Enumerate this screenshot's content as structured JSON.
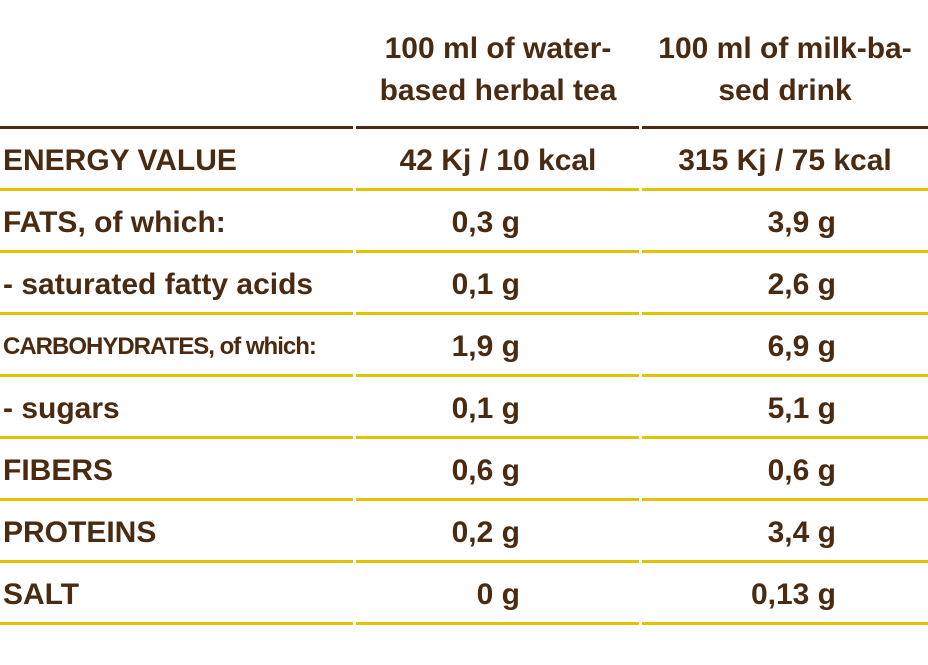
{
  "header": {
    "col1": "",
    "col2": [
      "100 ml of water-",
      "based herbal tea"
    ],
    "col3": [
      "100 ml of milk-ba-",
      "sed drink"
    ]
  },
  "rows": [
    {
      "label": "ENERGY VALUE",
      "tea": "42 Kj / 10 kcal",
      "milk": "315 Kj / 75 kcal"
    },
    {
      "label": "FATS, of which:",
      "tea": "0,3 g",
      "milk": "3,9 g"
    },
    {
      "label": " - saturated fatty acids",
      "tea": "0,1 g",
      "milk": "2,6 g"
    },
    {
      "label": "CARBOHYDRATES, of which:",
      "tea": "1,9 g",
      "milk": "6,9 g"
    },
    {
      "label": " - sugars",
      "tea": "0,1 g",
      "milk": "5,1 g"
    },
    {
      "label": "FIBERS",
      "tea": "0,6 g",
      "milk": "0,6 g"
    },
    {
      "label": "PROTEINS",
      "tea": "0,2 g",
      "milk": "3,4 g"
    },
    {
      "label": "SALT",
      "tea": "0 g",
      "milk": "0,13 g"
    }
  ],
  "colors": {
    "text": "#4a2a10",
    "rule": "#e2c300",
    "header_rule": "#4a2a10"
  }
}
